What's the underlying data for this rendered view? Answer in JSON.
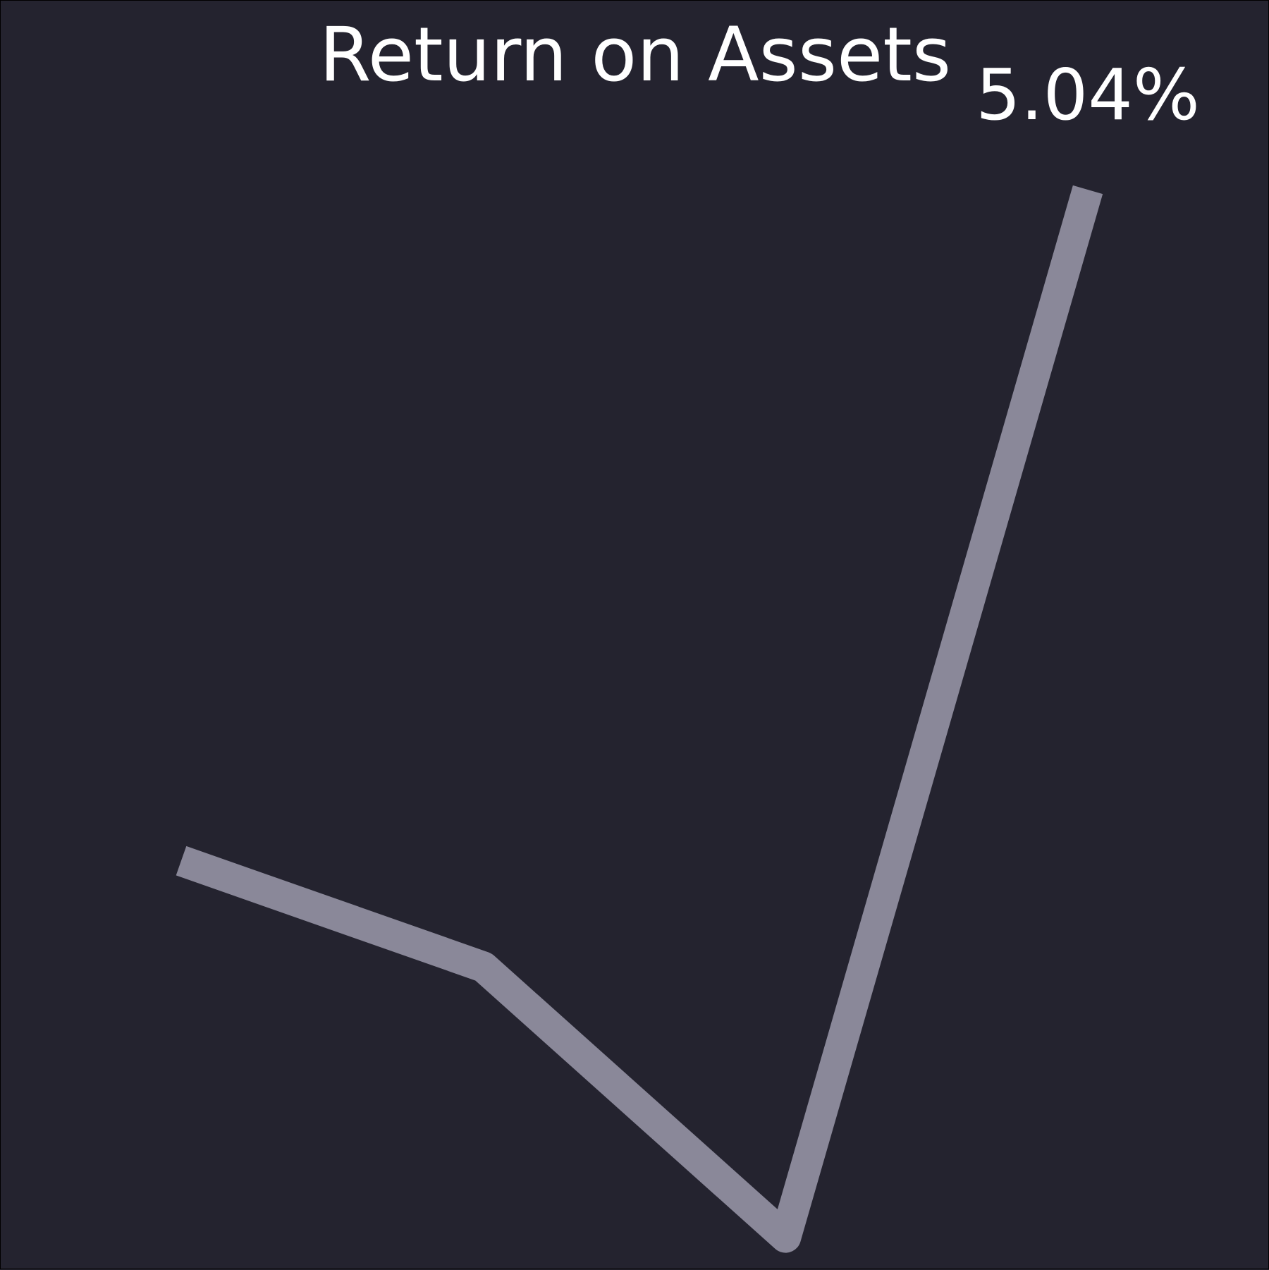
{
  "chart_data": {
    "type": "line",
    "title": "Return on Assets",
    "x": [
      1,
      2,
      3,
      4
    ],
    "series": [
      {
        "values": [
          3.65,
          3.43,
          2.87,
          5.04
        ],
        "color": "#8a8899"
      }
    ],
    "data_labels": [
      {
        "index": 3,
        "text": "5.04%"
      }
    ],
    "ylim": [
      2.7,
      5.3
    ],
    "grid": false,
    "axes_visible": false,
    "background": "#24232f",
    "text_color": "#ffffff"
  }
}
